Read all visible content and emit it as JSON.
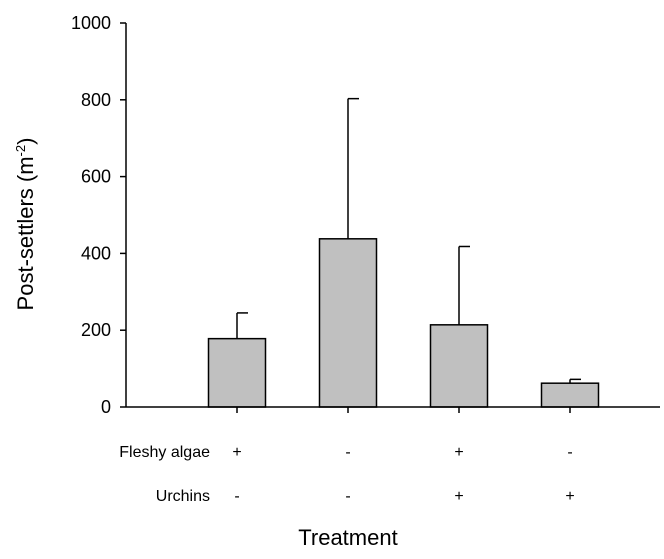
{
  "chart_data": {
    "type": "bar",
    "xlabel": "Treatment",
    "ylabel": "Post-settlers (m",
    "ylabel_sup": "-2",
    "ylabel_close": ")",
    "ylim": [
      0,
      1000
    ],
    "yticks": [
      0,
      200,
      400,
      600,
      800,
      1000
    ],
    "bar_color": "#c0c0c0",
    "series": [
      {
        "values": [
          178,
          438,
          214,
          62
        ],
        "error_upper": [
          245,
          803,
          418,
          72
        ]
      }
    ],
    "factors": [
      {
        "label": "Fleshy algae",
        "levels": [
          "+",
          "-",
          "+",
          "-"
        ]
      },
      {
        "label": "Urchins",
        "levels": [
          "-",
          "-",
          "+",
          "+"
        ]
      }
    ],
    "grid": false
  }
}
